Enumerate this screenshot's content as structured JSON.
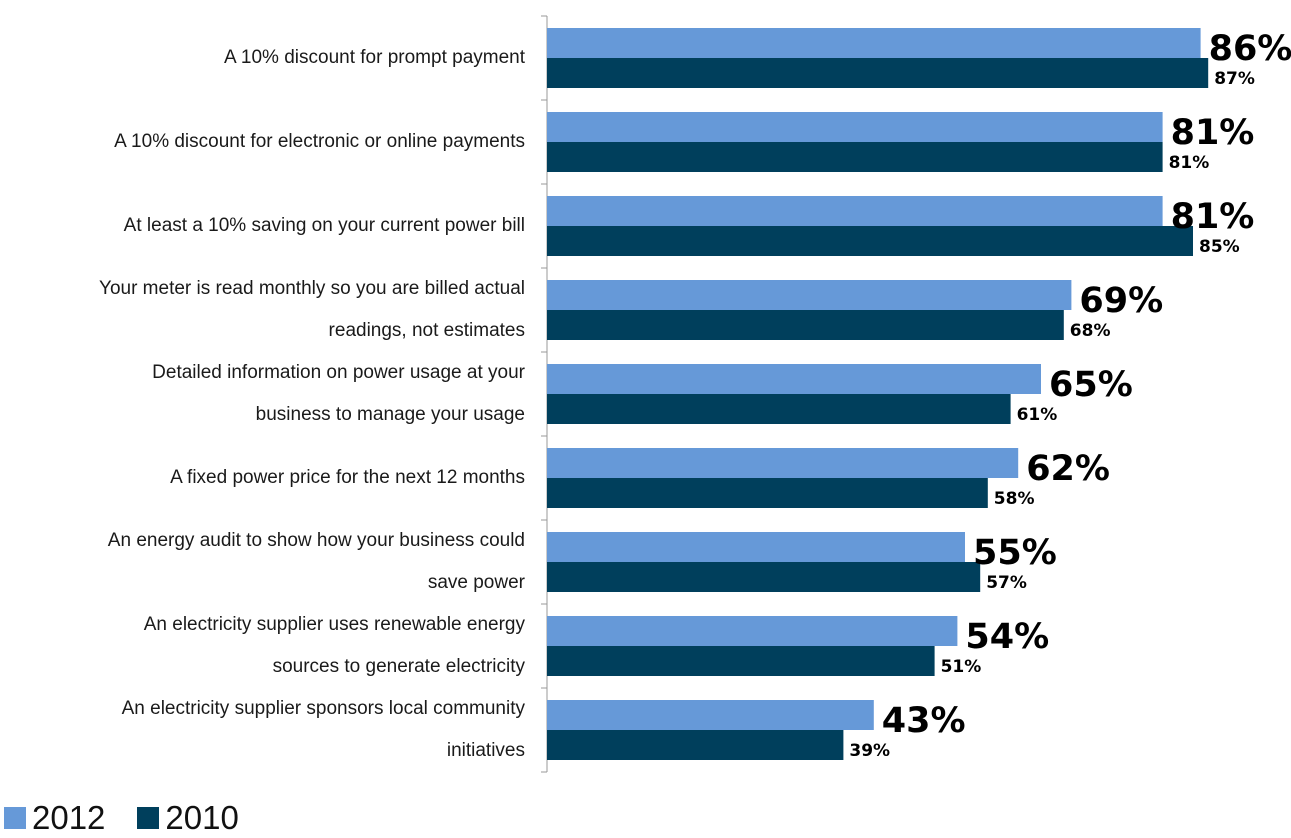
{
  "chart_data": {
    "type": "bar",
    "orientation": "horizontal",
    "categories": [
      [
        "A 10% discount for prompt payment"
      ],
      [
        "A 10% discount for electronic or online payments"
      ],
      [
        "At least a 10% saving on your current power bill"
      ],
      [
        "Your meter is read monthly so you are billed actual",
        "readings, not estimates"
      ],
      [
        "Detailed information on power usage at your",
        "business to manage your usage"
      ],
      [
        "A fixed power price for the next 12 months"
      ],
      [
        "An energy audit to show how your business could",
        "save power"
      ],
      [
        "An electricity supplier uses renewable energy",
        "sources to generate electricity"
      ],
      [
        "An electricity supplier sponsors local community",
        "initiatives"
      ]
    ],
    "series": [
      {
        "name": "2012",
        "color": "#6699d8",
        "values": [
          86,
          81,
          81,
          69,
          65,
          62,
          55,
          54,
          43
        ],
        "labels": [
          "86%",
          "81%",
          "81%",
          "69%",
          "65%",
          "62%",
          "55%",
          "54%",
          "43%"
        ]
      },
      {
        "name": "2010",
        "color": "#003f5c",
        "values": [
          87,
          81,
          85,
          68,
          61,
          58,
          57,
          51,
          39
        ],
        "labels": [
          "87%",
          "81%",
          "85%",
          "68%",
          "61%",
          "58%",
          "57%",
          "51%",
          "39%"
        ]
      }
    ],
    "xlim": [
      0,
      100
    ],
    "grid": false,
    "legend_position": "bottom-left"
  },
  "legend": {
    "items": [
      {
        "label": "2012",
        "color": "#6699d8"
      },
      {
        "label": "2010",
        "color": "#003f5c"
      }
    ]
  }
}
